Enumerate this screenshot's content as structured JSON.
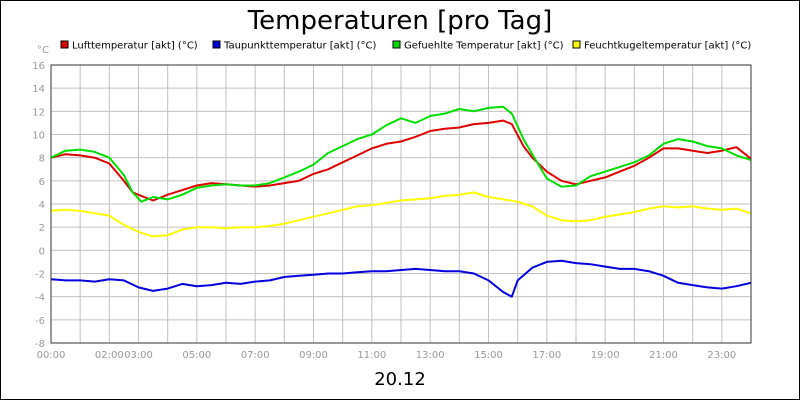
{
  "chart_data": {
    "type": "line",
    "title": "Temperaturen [pro Tag]",
    "date_label": "20.12",
    "y_unit": "°C",
    "ylim": [
      -8,
      16
    ],
    "y_ticks": [
      -8,
      -6,
      -4,
      -2,
      0,
      2,
      4,
      6,
      8,
      10,
      12,
      14,
      16
    ],
    "xlim": [
      0,
      24
    ],
    "x_ticks": [
      {
        "x": 0,
        "label": "00:00"
      },
      {
        "x": 2,
        "label": "02:00"
      },
      {
        "x": 3,
        "label": "03:00"
      },
      {
        "x": 5,
        "label": "05:00"
      },
      {
        "x": 7,
        "label": "07:00"
      },
      {
        "x": 9,
        "label": "09:00"
      },
      {
        "x": 11,
        "label": "11:00"
      },
      {
        "x": 13,
        "label": "13:00"
      },
      {
        "x": 15,
        "label": "15:00"
      },
      {
        "x": 17,
        "label": "17:00"
      },
      {
        "x": 19,
        "label": "19:00"
      },
      {
        "x": 21,
        "label": "21:00"
      },
      {
        "x": 23,
        "label": "23:00"
      }
    ],
    "grid": true,
    "legend_position": "top",
    "series": [
      {
        "name": "Lufttemperatur [akt] (°C)",
        "color": "#dd0000",
        "x": [
          0,
          0.5,
          1,
          1.5,
          2,
          2.5,
          2.8,
          3.1,
          3.5,
          4,
          4.5,
          5,
          5.5,
          6,
          6.5,
          7,
          7.5,
          8,
          8.5,
          9,
          9.5,
          10,
          10.5,
          11,
          11.5,
          12,
          12.5,
          13,
          13.5,
          14,
          14.5,
          15,
          15.5,
          15.8,
          16.2,
          16.5,
          17,
          17.5,
          18,
          18.5,
          19,
          19.5,
          20,
          20.5,
          21,
          21.5,
          22,
          22.5,
          23,
          23.5,
          24
        ],
        "values": [
          8.0,
          8.3,
          8.2,
          8.0,
          7.5,
          6.0,
          5.0,
          4.7,
          4.3,
          4.8,
          5.2,
          5.6,
          5.8,
          5.7,
          5.6,
          5.5,
          5.6,
          5.8,
          6.0,
          6.6,
          7.0,
          7.6,
          8.2,
          8.8,
          9.2,
          9.4,
          9.8,
          10.3,
          10.5,
          10.6,
          10.9,
          11.0,
          11.2,
          10.9,
          9.0,
          8.0,
          6.8,
          6.0,
          5.7,
          6.0,
          6.3,
          6.8,
          7.3,
          8.0,
          8.8,
          8.8,
          8.6,
          8.4,
          8.6,
          8.9,
          7.9
        ]
      },
      {
        "name": "Taupunkttemperatur [akt] (°C)",
        "color": "#0000dd",
        "x": [
          0,
          0.5,
          1,
          1.5,
          2,
          2.5,
          3,
          3.5,
          4,
          4.5,
          5,
          5.5,
          6,
          6.5,
          7,
          7.5,
          8,
          8.5,
          9,
          9.5,
          10,
          10.5,
          11,
          11.5,
          12,
          12.5,
          13,
          13.5,
          14,
          14.5,
          15,
          15.5,
          15.8,
          16,
          16.5,
          17,
          17.5,
          18,
          18.5,
          19,
          19.5,
          20,
          20.5,
          21,
          21.5,
          22,
          22.5,
          23,
          23.5,
          24
        ],
        "values": [
          -2.5,
          -2.6,
          -2.6,
          -2.7,
          -2.5,
          -2.6,
          -3.2,
          -3.5,
          -3.3,
          -2.9,
          -3.1,
          -3.0,
          -2.8,
          -2.9,
          -2.7,
          -2.6,
          -2.3,
          -2.2,
          -2.1,
          -2.0,
          -2.0,
          -1.9,
          -1.8,
          -1.8,
          -1.7,
          -1.6,
          -1.7,
          -1.8,
          -1.8,
          -2.0,
          -2.6,
          -3.6,
          -4.0,
          -2.6,
          -1.5,
          -1.0,
          -0.9,
          -1.1,
          -1.2,
          -1.4,
          -1.6,
          -1.6,
          -1.8,
          -2.2,
          -2.8,
          -3.0,
          -3.2,
          -3.3,
          -3.1,
          -2.8
        ]
      },
      {
        "name": "Gefuehlte Temperatur [akt] (°C)",
        "color": "#00dd00",
        "x": [
          0,
          0.5,
          1,
          1.5,
          2,
          2.5,
          2.8,
          3.1,
          3.5,
          4,
          4.5,
          5,
          5.5,
          6,
          6.5,
          7,
          7.5,
          8,
          8.5,
          9,
          9.5,
          10,
          10.5,
          11,
          11.5,
          12,
          12.5,
          13,
          13.5,
          14,
          14.5,
          15,
          15.5,
          15.8,
          16.2,
          16.5,
          17,
          17.5,
          18,
          18.5,
          19,
          19.5,
          20,
          20.5,
          21,
          21.5,
          22,
          22.5,
          23,
          23.5,
          24
        ],
        "values": [
          8.0,
          8.6,
          8.7,
          8.5,
          8.0,
          6.5,
          5.0,
          4.2,
          4.6,
          4.4,
          4.8,
          5.4,
          5.6,
          5.7,
          5.6,
          5.6,
          5.8,
          6.3,
          6.8,
          7.4,
          8.4,
          9.0,
          9.6,
          10.0,
          10.8,
          11.4,
          11.0,
          11.6,
          11.8,
          12.2,
          12.0,
          12.3,
          12.4,
          11.8,
          9.6,
          8.3,
          6.2,
          5.5,
          5.6,
          6.4,
          6.8,
          7.2,
          7.6,
          8.2,
          9.2,
          9.6,
          9.4,
          9.0,
          8.8,
          8.2,
          7.8
        ]
      },
      {
        "name": "Feuchtkugeltemperatur [akt] (°C)",
        "color": "#ffff00",
        "x": [
          0,
          0.5,
          1,
          1.5,
          2,
          2.5,
          3,
          3.5,
          4,
          4.5,
          5,
          5.5,
          6,
          6.5,
          7,
          7.5,
          8,
          8.5,
          9,
          9.5,
          10,
          10.5,
          11,
          11.5,
          12,
          12.5,
          13,
          13.5,
          14,
          14.5,
          15,
          15.5,
          16,
          16.5,
          17,
          17.5,
          18,
          18.5,
          19,
          19.5,
          20,
          20.5,
          21,
          21.5,
          22,
          22.5,
          23,
          23.5,
          24
        ],
        "values": [
          3.4,
          3.5,
          3.4,
          3.2,
          3.0,
          2.2,
          1.6,
          1.2,
          1.3,
          1.8,
          2.0,
          2.0,
          1.9,
          2.0,
          2.0,
          2.1,
          2.3,
          2.6,
          2.9,
          3.2,
          3.5,
          3.8,
          3.9,
          4.1,
          4.3,
          4.4,
          4.5,
          4.7,
          4.8,
          5.0,
          4.6,
          4.4,
          4.2,
          3.8,
          3.0,
          2.6,
          2.5,
          2.6,
          2.9,
          3.1,
          3.3,
          3.6,
          3.8,
          3.7,
          3.8,
          3.6,
          3.5,
          3.6,
          3.2
        ]
      }
    ]
  }
}
